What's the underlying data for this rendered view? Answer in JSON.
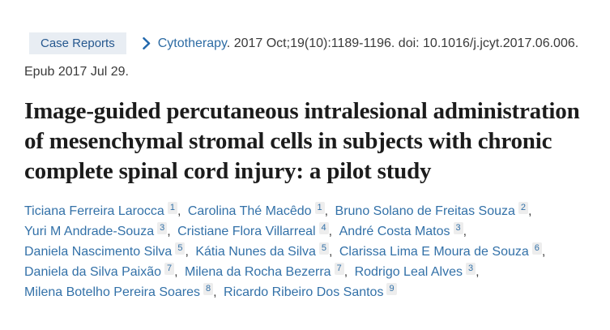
{
  "colors": {
    "page_bg": "#ffffff",
    "badge_bg": "#e8edf3",
    "badge_text": "#26588f",
    "chevron_blue": "#2268ad",
    "link_blue": "#3371a8",
    "journal_link_blue": "#2e6ca4",
    "meta_text": "#3a3a3a",
    "title_text": "#1c1c1c",
    "superscript_bg": "#ededed"
  },
  "header": {
    "badge_label": "Case Reports",
    "chevron_icon": "chevron-right-icon",
    "journal": "Cytotherapy",
    "citation_rest": ". 2017 Oct;19(10):1189-1196. doi: 10.1016/j.jcyt.2017.06.006.",
    "epub": "Epub 2017 Jul 29."
  },
  "title": "Image-guided percutaneous intralesional administration of mesenchymal stromal cells in subjects with chronic complete spinal cord injury: a pilot study",
  "authors": {
    "separator": ",",
    "lines": [
      [
        {
          "name": "Ticiana Ferreira Larocca",
          "sup": "1"
        },
        {
          "name": "Carolina Thé Macêdo",
          "sup": "1"
        },
        {
          "name": "Bruno Solano de Freitas Souza",
          "sup": "2"
        }
      ],
      [
        {
          "name": "Yuri M Andrade-Souza",
          "sup": "3"
        },
        {
          "name": "Cristiane Flora Villarreal",
          "sup": "4"
        },
        {
          "name": "André Costa Matos",
          "sup": "3"
        }
      ],
      [
        {
          "name": "Daniela Nascimento Silva",
          "sup": "5"
        },
        {
          "name": "Kátia Nunes da Silva",
          "sup": "5"
        },
        {
          "name": "Clarissa Lima E Moura de Souza",
          "sup": "6"
        }
      ],
      [
        {
          "name": "Daniela da Silva Paixão",
          "sup": "7"
        },
        {
          "name": "Milena da Rocha Bezerra",
          "sup": "7"
        },
        {
          "name": "Rodrigo Leal Alves",
          "sup": "3"
        }
      ],
      [
        {
          "name": "Milena Botelho Pereira Soares",
          "sup": "8"
        },
        {
          "name": "Ricardo Ribeiro Dos Santos",
          "sup": "9"
        }
      ]
    ]
  }
}
